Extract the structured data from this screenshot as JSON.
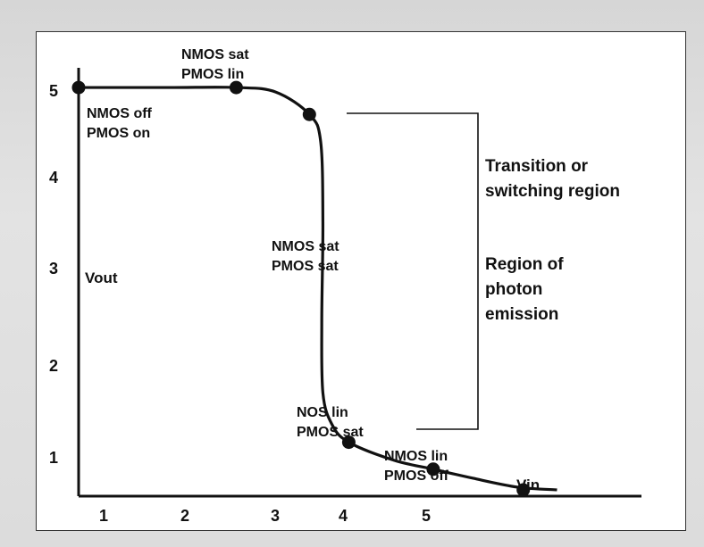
{
  "chart_data": {
    "type": "line",
    "xlabel": "Vin",
    "ylabel": "Vout",
    "x_ticks": [
      "1",
      "2",
      "3",
      "4",
      "5"
    ],
    "y_ticks": [
      "1",
      "2",
      "3",
      "4",
      "5"
    ],
    "xlim": [
      0.7,
      5.7
    ],
    "ylim": [
      0.45,
      5.1
    ],
    "series": [
      {
        "values": [
          {
            "x": 0.7,
            "y": 5.0
          },
          {
            "x": 1.5,
            "y": 5.0
          },
          {
            "x": 2.1,
            "y": 5.0
          },
          {
            "x": 2.45,
            "y": 4.95
          },
          {
            "x": 2.75,
            "y": 4.7
          },
          {
            "x": 2.85,
            "y": 4.4
          },
          {
            "x": 2.87,
            "y": 3.5
          },
          {
            "x": 2.86,
            "y": 2.4
          },
          {
            "x": 2.87,
            "y": 1.6
          },
          {
            "x": 2.95,
            "y": 1.25
          },
          {
            "x": 3.1,
            "y": 1.05
          },
          {
            "x": 3.5,
            "y": 0.85
          },
          {
            "x": 3.85,
            "y": 0.75
          },
          {
            "x": 4.2,
            "y": 0.65
          },
          {
            "x": 4.6,
            "y": 0.55
          },
          {
            "x": 4.95,
            "y": 0.52
          }
        ]
      }
    ],
    "markers": [
      {
        "x": 0.7,
        "y": 5.0,
        "label_lines": [
          "NMOS off",
          "PMOS on"
        ]
      },
      {
        "x": 2.1,
        "y": 5.0,
        "label_lines": [
          "NMOS sat",
          "PMOS lin"
        ]
      },
      {
        "x": 2.75,
        "y": 4.7,
        "label_lines": []
      },
      {
        "x": 3.1,
        "y": 1.05,
        "label_lines": [
          "NOS lin",
          "PMOS sat"
        ]
      },
      {
        "x": 3.85,
        "y": 0.75,
        "label_lines": []
      },
      {
        "x": 4.65,
        "y": 0.52,
        "label_lines": [
          "NMOS lin",
          "PMOS off"
        ]
      }
    ],
    "annotations": {
      "mid_curve": [
        "NMOS sat",
        "PMOS sat"
      ],
      "region_title": [
        "Transition or",
        "switching region"
      ],
      "region_sub": [
        "Region of",
        "photon",
        "emission"
      ]
    }
  }
}
